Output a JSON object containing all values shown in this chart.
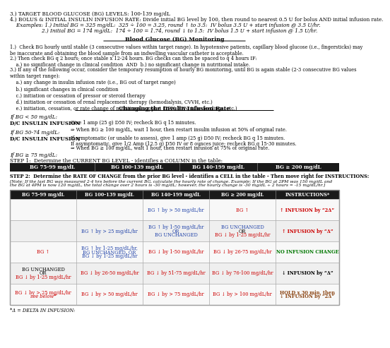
{
  "title_text": "Blood Glucose (BG) Monitoring",
  "title2_text": "Changing the Insulin Infusion Rate",
  "bg_monitoring_text": [
    "1.)  Check BG hourly until stable (3 consecutive values within target range). In hypotensive patients, capillary blood glucose (i.e., fingersticks) may\nbe inaccurate and obtaining the blood sample from an indwelling vascular catheter is acceptable.",
    "2.) Then check BG q 2 hours; once stable x 12-24 hours. BG checks can then be spaced to q 4 hours IF:\n    a.) no significant change in clinical condition  AND  b.) no significant change in nutritional intake.",
    "3.) If any of the following occur, consider the temporary resumption of hourly BG monitoring, until BG is again stable (2-3 consecutive BG values\nwithin target range):\n    a.) any change in insulin infusion rate (i.e., BG out of target range)\n    b.) significant changes in clinical condition\n    c.) initiation or cessation of pressor or steroid therapy\n    d.) initiation or cessation of renal replacement therapy (hemodialysis, CVVH, etc.)\n    e.) initiation, cessation, or rate change of nutritional support (TPN, PPN, tube feedings, etc.)"
  ],
  "top_lines": [
    "3.) TARGET BLOOD GLUCOSE (BG) LEVELS: 100-139 mg/dL",
    "4.) BOLUS & INITIAL INSULIN INFUSION RATE: Divide initial BG level by 100, then round to nearest 0.5 U for bolus AND initial infusion rate.",
    "    Examples: 1.) Initial BG = 325 mg/dL:  325 ÷ 100 = 3.25, round ↑ to 3.5:  IV bolus 3.5 U + start infusion @ 3.5 U/hr.",
    "                    2.) Initial BG = 174 mg/dL:  174 ÷ 100 = 1.74, round ↓ to 1.5:  IV bolus 1.5 U + start infusion @ 1.5 U/hr."
  ],
  "dc_section1": {
    "header": "If BG < 50 mg/dL:",
    "bold": "D/C INSULIN INFUSION",
    "text": "Give 1 amp (25 g) D50 IV; recheck BG q 15 minutes.\n⇒ When BG ≥ 100 mg/dL, wait 1 hour, then restart insulin infusion at 50% of original rate."
  },
  "dc_section2": {
    "header": "If BG 50-74 mg/dL:",
    "bold": "D/C INSULIN INFUSION",
    "text1": "If symptomatic (or unable to assess), give 1 amp (25 g) D50 IV; recheck BG q 15 minutes.",
    "text2": "If asymptomatic, give 1/2 Amp (12.5 g) D50 IV or 8 ounces juice; recheck BG q 15-30 minutes.",
    "text3": "⇒ When BG ≥ 100 mg/dL, wait 1 hour, then restart infusion at 75% of original rate."
  },
  "step1_header": "If BG ≥ 75 mg/dL:",
  "step1_text": "STEP 1:  Determine the CURRENT BG LEVEL - identifies a COLUMN in the table:",
  "step1_cols": [
    "BG 75-99 mg/dL",
    "BG 100-139 mg/dL",
    "BG 140-199 mg/dL",
    "BG ≥ 200 mg/dL"
  ],
  "step2_header": "STEP 2:  Determine the RATE OF CHANGE from the prior BG level - identifies a CELL in the table - Then move right for INSTRUCTIONS:",
  "step2_note": "[Note: If the last BG was measured 2-4 hrs before the current BG, calculate the hourly rate of change. Example: If the BG at 2PM was 150 mg/dL and\nthe BG at 4PM is now 120 mg/dL, the total change over 2 hours is -30 mg/dL; however, the hourly change is -30 mg/dL ÷ 2 hours = -15 mg/dL/hr.]",
  "col_headers": [
    "BG 75-99 mg/dL",
    "BG 100-139 mg/dL",
    "BG 140-199 mg/dL",
    "BG ≥ 200 mg/dL",
    "INSTRUCTIONS*"
  ],
  "table_data": [
    [
      "",
      "",
      "BG ↑ by > 50 mg/dL/hr",
      "BG ↑",
      "↑ INFUSION by “2Δ”"
    ],
    [
      "",
      "BG ↑ by > 25 mg/dL/hr",
      "BG ↑ by 1-50 mg/dL/hr\nOR\nBG UNCHANGED",
      "BG UNCHANGED\nOR\nBG ↓ by 1-25 mg/dL/hr",
      "↑ INFUSION by “Δ”"
    ],
    [
      "BG ↑",
      "BG ↑ by 1-25 mg/dL/hr,\nBG UNCHANGED, OR\nBG ↓ by 1-25 mg/dL/hr",
      "BG ↓ by 1-50 mg/dL/hr",
      "BG ↓ by 26-75 mg/dL/hr",
      "NO INFUSION CHANGE"
    ],
    [
      "BG UNCHANGED\nOR\nBG ↓ by 1-25 mg/dL/hr",
      "BG ↓ by 26-50 mg/dL/hr",
      "BG ↓ by 51-75 mg/dL/hr",
      "BG ↓ by 76-100 mg/dL/hr",
      "↓ INFUSION by “Δ”"
    ],
    [
      "BG ↓ by > 25 mg/dL/hr\nsee below*",
      "BG ↓ by > 50 mg/dL/hr",
      "BG ↓ by > 75 mg/dL/hr",
      "BG ↓ by > 100 mg/dL/hr",
      "HOLD x 30 min, then\n↓ INFUSION by “2Δ”"
    ]
  ],
  "cell_text_colors": [
    [
      "#000000",
      "#000000",
      "#2244aa",
      "#cc0000",
      "#cc0000"
    ],
    [
      "#000000",
      "#2244aa",
      "#2244aa",
      "#2244aa",
      "#cc0000"
    ],
    [
      "#cc0000",
      "#2244aa",
      "#cc0000",
      "#cc0000",
      "#007700"
    ],
    [
      "#000000",
      "#cc0000",
      "#cc0000",
      "#cc0000",
      "#000000"
    ],
    [
      "#cc0000",
      "#cc0000",
      "#cc0000",
      "#cc0000",
      "#8B4513"
    ]
  ],
  "cell_mixed_colors": {
    "3_0": [
      "#000000",
      "#000000",
      "#cc0000"
    ],
    "1_3": [
      "#2244aa",
      "#000000",
      "#cc0000"
    ],
    "4_0": [
      "#cc0000",
      "#cc0000"
    ]
  },
  "footnote": "*Δ = DELTA IN INFUSION:"
}
